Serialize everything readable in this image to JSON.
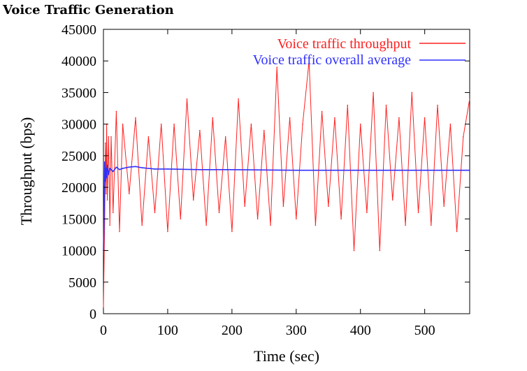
{
  "page": {
    "title": "Voice Traffic Generation"
  },
  "chart_data": {
    "type": "line",
    "title": "",
    "xlabel": "Time (sec)",
    "ylabel": "Throughput (bps)",
    "xlim": [
      0,
      570
    ],
    "ylim": [
      0,
      45000
    ],
    "xticks": [
      0,
      100,
      200,
      300,
      400,
      500
    ],
    "yticks": [
      0,
      5000,
      10000,
      15000,
      20000,
      25000,
      30000,
      35000,
      40000,
      45000
    ],
    "grid": false,
    "legend_position": "top-right",
    "series": [
      {
        "name": "Voice traffic throughput",
        "color": "#ff2020",
        "x": [
          0,
          2,
          3,
          4,
          5,
          6,
          8,
          10,
          12,
          15,
          20,
          25,
          30,
          40,
          50,
          60,
          70,
          80,
          90,
          100,
          110,
          120,
          130,
          140,
          150,
          160,
          170,
          180,
          190,
          200,
          210,
          220,
          230,
          240,
          250,
          260,
          270,
          280,
          290,
          300,
          310,
          320,
          330,
          340,
          350,
          360,
          370,
          380,
          390,
          400,
          410,
          420,
          430,
          440,
          450,
          460,
          470,
          480,
          490,
          500,
          510,
          520,
          530,
          540,
          550,
          560,
          570
        ],
        "values": [
          1000,
          15000,
          27000,
          19000,
          30000,
          18000,
          28000,
          14000,
          28000,
          16000,
          32000,
          13000,
          30000,
          19000,
          31000,
          14000,
          28000,
          16000,
          30000,
          13000,
          30000,
          15000,
          34000,
          18000,
          29000,
          14000,
          31000,
          16000,
          28000,
          13000,
          34000,
          17000,
          30000,
          15000,
          29000,
          14000,
          39000,
          17000,
          31000,
          15000,
          30000,
          40000,
          14000,
          32000,
          17000,
          31000,
          15000,
          33000,
          10000,
          30000,
          16000,
          35000,
          10000,
          33000,
          18000,
          31000,
          14000,
          35000,
          16000,
          31000,
          14000,
          33000,
          17000,
          30000,
          13000,
          28000,
          34000
        ]
      },
      {
        "name": "Voice traffic overall average",
        "color": "#3030ff",
        "x": [
          0,
          1,
          2,
          3,
          4,
          5,
          6,
          8,
          10,
          15,
          20,
          25,
          30,
          40,
          50,
          60,
          70,
          80,
          100,
          150,
          200,
          300,
          400,
          500,
          570
        ],
        "values": [
          10000,
          15000,
          24000,
          21000,
          23000,
          21500,
          23500,
          22000,
          23000,
          22500,
          23200,
          22800,
          23000,
          23200,
          23300,
          23100,
          23000,
          22900,
          22900,
          22800,
          22800,
          22700,
          22700,
          22700,
          22700
        ]
      }
    ]
  }
}
